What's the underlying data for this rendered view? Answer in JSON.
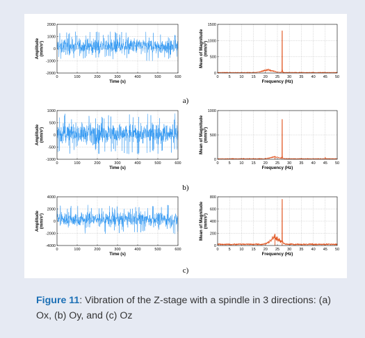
{
  "colors": {
    "time_signal": "#1f8ff0",
    "spectrum": "#e0501a",
    "grid": "#a9a9a9",
    "caption_label": "#1b6fb5"
  },
  "caption": {
    "label": "Figure 11",
    "text": ": Vibration of the Z-stage with a spindle in 3 directions: (a) Ox, (b) Oy, and (c) Oz"
  },
  "panels": [
    {
      "label": "a)"
    },
    {
      "label": "b)"
    },
    {
      "label": "c)"
    }
  ],
  "chart_data": [
    {
      "type": "line",
      "panel": "a",
      "domain": "time",
      "xlabel": "Time (s)",
      "ylabel_line1": "Amplitude",
      "ylabel_line2": "(mm/s²)",
      "xlim": [
        0,
        600
      ],
      "ylim": [
        -2000,
        2000
      ],
      "xticks": [
        0,
        100,
        200,
        300,
        400,
        500,
        600
      ],
      "yticks": [
        2000,
        1000,
        0,
        -1000,
        -2000
      ],
      "signal": {
        "mean": 200,
        "typical_amplitude": 700,
        "max_amplitude": 1200
      },
      "grid": true
    },
    {
      "type": "line",
      "panel": "a",
      "domain": "frequency",
      "xlabel": "Frequency (Hz)",
      "ylabel_line1": "Mean of Magnitude",
      "ylabel_line2": "(mm/s²)",
      "xlim": [
        0,
        50
      ],
      "ylim": [
        0,
        1500
      ],
      "xticks": [
        0,
        5,
        10,
        15,
        20,
        25,
        30,
        35,
        40,
        45,
        50
      ],
      "yticks": [
        1500,
        1000,
        500,
        0
      ],
      "peaks": [
        {
          "x": 27,
          "y": 1300
        }
      ],
      "hump": {
        "center": 21,
        "width": 3,
        "height": 90
      },
      "baseline": 15,
      "grid": true
    },
    {
      "type": "line",
      "panel": "b",
      "domain": "time",
      "xlabel": "Time (s)",
      "ylabel_line1": "Amplitude",
      "ylabel_line2": "(mm/s²)",
      "xlim": [
        0,
        600
      ],
      "ylim": [
        -1000,
        1000
      ],
      "xticks": [
        0,
        100,
        200,
        300,
        400,
        500,
        600
      ],
      "yticks": [
        1000,
        500,
        0,
        -500,
        -1000
      ],
      "signal": {
        "mean": 50,
        "typical_amplitude": 450,
        "max_amplitude": 850
      },
      "grid": true
    },
    {
      "type": "line",
      "panel": "b",
      "domain": "frequency",
      "xlabel": "Frequency (Hz)",
      "ylabel_line1": "Mean of Magnitude",
      "ylabel_line2": "(mm/s²)",
      "xlim": [
        0,
        50
      ],
      "ylim": [
        0,
        1000
      ],
      "xticks": [
        0,
        5,
        10,
        15,
        20,
        25,
        30,
        35,
        40,
        45,
        50
      ],
      "yticks": [
        1000,
        500,
        0
      ],
      "peaks": [
        {
          "x": 27,
          "y": 820
        },
        {
          "x": 24,
          "y": 60
        },
        {
          "x": 45,
          "y": 40
        }
      ],
      "hump": {
        "center": 24,
        "width": 2.5,
        "height": 40
      },
      "baseline": 10,
      "grid": true
    },
    {
      "type": "line",
      "panel": "c",
      "domain": "time",
      "xlabel": "Time (s)",
      "ylabel_line1": "Amplitude",
      "ylabel_line2": "(mm/s²)",
      "xlim": [
        0,
        600
      ],
      "ylim": [
        -4000,
        4000
      ],
      "xticks": [
        0,
        100,
        200,
        300,
        400,
        500,
        600
      ],
      "yticks": [
        4000,
        2000,
        0,
        -2000,
        -4000
      ],
      "signal": {
        "mean": 300,
        "typical_amplitude": 1300,
        "max_amplitude": 2400
      },
      "grid": true
    },
    {
      "type": "line",
      "panel": "c",
      "domain": "frequency",
      "xlabel": "Frequency (Hz)",
      "ylabel_line1": "Mean of Magnitude",
      "ylabel_line2": "(mm/s²)",
      "xlim": [
        0,
        50
      ],
      "ylim": [
        0,
        800
      ],
      "xticks": [
        0,
        5,
        10,
        15,
        20,
        25,
        30,
        35,
        40,
        45,
        50
      ],
      "yticks": [
        800,
        600,
        400,
        200,
        0
      ],
      "peaks": [
        {
          "x": 27,
          "y": 760
        },
        {
          "x": 24,
          "y": 190
        }
      ],
      "hump": {
        "center": 24,
        "width": 2.5,
        "height": 120
      },
      "baseline": 20,
      "grid": true
    }
  ]
}
